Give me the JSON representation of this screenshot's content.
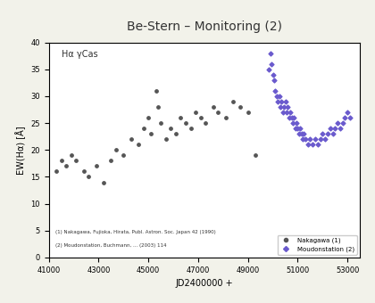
{
  "chart_data": {
    "type": "scatter",
    "title": "Be-Stern – Monitoring (2)",
    "x_label": "JD2400000 +",
    "y_label": "EW(Hα) [Å]",
    "annotations": [
      "Hα γCas",
      "(1) Nakagawa, Fujioka, Hirata, Publ. Astron. Soc. Japan 42 (1990)",
      "(2) Moudonstation, Buchmann, ... (2003) 114"
    ],
    "xlim": [
      41000,
      53500
    ],
    "ylim": [
      0,
      40
    ],
    "xticks": [
      41000,
      43000,
      45000,
      47000,
      49000,
      51000,
      53000
    ],
    "yticks": [
      0,
      5,
      10,
      15,
      20,
      25,
      30,
      35,
      40
    ],
    "legend": "lower right",
    "series": [
      {
        "name": "Nakagawa (1)",
        "color": "#555555",
        "marker": "o",
        "x": [
          41300,
          41500,
          41700,
          41900,
          42100,
          42400,
          42600,
          42900,
          43200,
          43500,
          43700,
          44000,
          44300,
          44600,
          44800,
          45000,
          45100,
          45300,
          45400,
          45500,
          45700,
          45900,
          46100,
          46300,
          46500,
          46700,
          46900,
          47100,
          47300,
          47600,
          47800,
          48100,
          48400,
          48700,
          49000,
          49300
        ],
        "values": [
          16,
          18,
          17,
          19,
          18,
          16,
          15,
          17,
          14,
          18,
          20,
          19,
          22,
          21,
          24,
          26,
          23,
          31,
          28,
          25,
          22,
          24,
          23,
          26,
          25,
          24,
          27,
          26,
          25,
          28,
          27,
          26,
          29,
          28,
          27,
          19
        ]
      },
      {
        "name": "Moudonstation (2)",
        "color": "#6a5acd",
        "marker": "D",
        "x": [
          49850,
          49900,
          49950,
          50000,
          50050,
          50100,
          50150,
          50200,
          50250,
          50300,
          50350,
          50400,
          50450,
          50500,
          50550,
          50600,
          50650,
          50700,
          50750,
          50800,
          50850,
          50900,
          50950,
          51000,
          51050,
          51100,
          51150,
          51200,
          51250,
          51300,
          51400,
          51500,
          51600,
          51700,
          51800,
          51900,
          52000,
          52100,
          52200,
          52300,
          52400,
          52500,
          52600,
          52700,
          52800,
          52900,
          53000,
          53100
        ],
        "values": [
          35,
          38,
          36,
          34,
          33,
          31,
          30,
          29,
          30,
          28,
          29,
          27,
          28,
          29,
          27,
          28,
          26,
          27,
          26,
          25,
          26,
          24,
          25,
          24,
          23,
          24,
          23,
          22,
          23,
          22,
          21,
          22,
          21,
          22,
          21,
          22,
          23,
          22,
          23,
          24,
          23,
          24,
          25,
          24,
          25,
          26,
          27,
          26
        ]
      }
    ]
  }
}
